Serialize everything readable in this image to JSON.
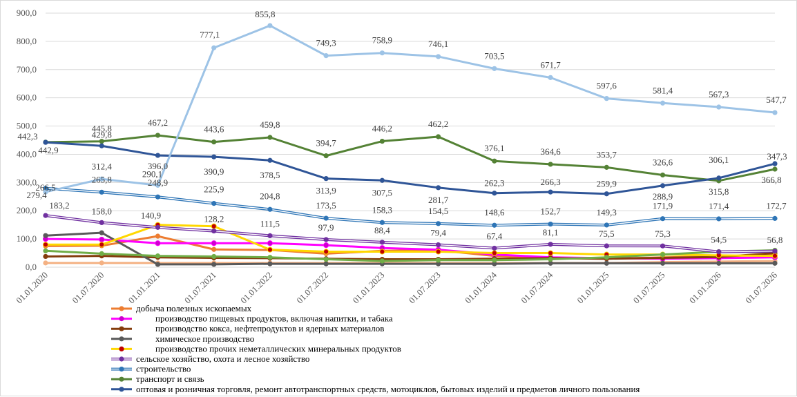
{
  "chart_data": {
    "type": "line",
    "title": "",
    "xlabel": "",
    "ylabel": "",
    "ylim": [
      0,
      900
    ],
    "yticks": [
      "0,0",
      "100,0",
      "200,0",
      "300,0",
      "400,0",
      "500,0",
      "600,0",
      "700,0",
      "800,0",
      "900,0"
    ],
    "grid": "horizontal",
    "legend_position": "bottom",
    "categories": [
      "01.01.2020",
      "01.07.2020",
      "01.01.2021",
      "01.07.2021",
      "01.01.2022",
      "01.07.2022",
      "01.01.2023",
      "01.07.2023",
      "01.01.2024",
      "01.07.2024",
      "01.01.2025",
      "01.07.2025",
      "01.01.2026",
      "01.07.2026"
    ],
    "series": [
      {
        "name": "добыча полезных ископаемых",
        "color": "#ed7d31",
        "values": [
          75,
          76,
          110,
          63,
          61,
          48,
          58,
          60,
          40,
          32,
          30,
          35,
          38,
          45
        ]
      },
      {
        "name": "производство пищевых продуктов, включая напитки, и табака",
        "color": "#ff00ff",
        "marker_fill": "#cc00cc",
        "values": [
          100,
          98,
          85,
          85,
          85,
          78,
          68,
          62,
          45,
          35,
          32,
          30,
          32,
          35
        ]
      },
      {
        "name": "производство кокса, нефтепродуктов и ядерных материалов",
        "color": "#843c0c",
        "values": [
          38,
          40,
          35,
          33,
          32,
          30,
          28,
          28,
          30,
          32,
          30,
          33,
          36,
          50
        ]
      },
      {
        "name": "химическое производство",
        "color": "#595959",
        "values": [
          112,
          122,
          10,
          10,
          12,
          12,
          12,
          12,
          12,
          14,
          14,
          14,
          14,
          14
        ]
      },
      {
        "name": "производство прочих неметаллических минеральных продуктов",
        "color": "#ffd700",
        "marker_fill": "#c00000",
        "values": [
          80,
          80,
          150,
          145,
          62,
          55,
          55,
          55,
          50,
          50,
          45,
          45,
          42,
          40
        ]
      },
      {
        "name": "сельское хозяйство, охота и лесное хозяйство",
        "color": "#7030a0",
        "double": true,
        "values": [
          183.2,
          158.0,
          140.9,
          128.2,
          111.5,
          97.9,
          88.4,
          79.4,
          67.4,
          81.1,
          75.5,
          75.3,
          54.5,
          56.8
        ]
      },
      {
        "name": "строительство",
        "color": "#2e75b6",
        "double": true,
        "values": [
          279.4,
          265.8,
          248.9,
          225.9,
          204.8,
          173.5,
          158.3,
          154.5,
          148.6,
          152.7,
          149.3,
          171.9,
          171.4,
          172.7
        ]
      },
      {
        "name": "транспорт и связь",
        "color": "#548235",
        "values": [
          442.9,
          445.8,
          467.2,
          443.6,
          459.8,
          394.7,
          446.2,
          462.2,
          376.1,
          364.6,
          353.7,
          326.6,
          306.1,
          347.3
        ]
      },
      {
        "name": "оптовая и розничная торговля, ремонт автотранспортных средств, мотоциклов, бытовых изделий и предметов личного пользования",
        "color": "#2f5597",
        "values": [
          442.3,
          429.8,
          396.0,
          390.9,
          378.5,
          313.9,
          307.5,
          281.7,
          262.3,
          266.3,
          259.9,
          288.9,
          315.8,
          366.8
        ]
      },
      {
        "name": "",
        "color": "#9dc3e6",
        "in_legend": false,
        "values": [
          266.5,
          312.4,
          290.1,
          777.1,
          855.8,
          749.3,
          758.9,
          746.1,
          703.5,
          671.7,
          597.6,
          581.4,
          567.3,
          547.7
        ]
      },
      {
        "name": "",
        "color": "#f4b183",
        "in_legend": false,
        "values": [
          15,
          15,
          15,
          15,
          15,
          15,
          15,
          15,
          15,
          15,
          15,
          18,
          20,
          22
        ]
      },
      {
        "name": "",
        "color": "#70ad47",
        "in_legend": false,
        "values": [
          58,
          48,
          40,
          38,
          35,
          28,
          22,
          25,
          25,
          28,
          35,
          45,
          55,
          60
        ]
      }
    ],
    "data_labels": {
      "light_blue": [
        "266,5",
        "312,4",
        "290,1",
        "777,1",
        "855,8",
        "749,3",
        "758,9",
        "746,1",
        "703,5",
        "671,7",
        "597,6",
        "581,4",
        "567,3",
        "547,7"
      ],
      "green": [
        "442,9",
        "445,8",
        "467,2",
        "443,6",
        "459,8",
        "394,7",
        "446,2",
        "462,2",
        "376,1",
        "364,6",
        "353,7",
        "326,6",
        "306,1",
        "347,3"
      ],
      "dark_blue": [
        "442,3",
        "429,8",
        "396,0",
        "390,9",
        "378,5",
        "313,9",
        "307,5",
        "281,7",
        "262,3",
        "266,3",
        "259,9",
        "288,9",
        "315,8",
        "366,8"
      ],
      "construction": [
        "279,4",
        "265,8",
        "248,9",
        "225,9",
        "204,8",
        "173,5",
        "158,3",
        "154,5",
        "148,6",
        "152,7",
        "149,3",
        "171,9",
        "171,4",
        "172,7"
      ],
      "agriculture": [
        "183,2",
        "158,0",
        "140,9",
        "128,2",
        "111,5",
        "97,9",
        "88,4",
        "79,4",
        "67,4",
        "81,1",
        "75,5",
        "75,3",
        "54,5",
        "56,8"
      ]
    }
  }
}
